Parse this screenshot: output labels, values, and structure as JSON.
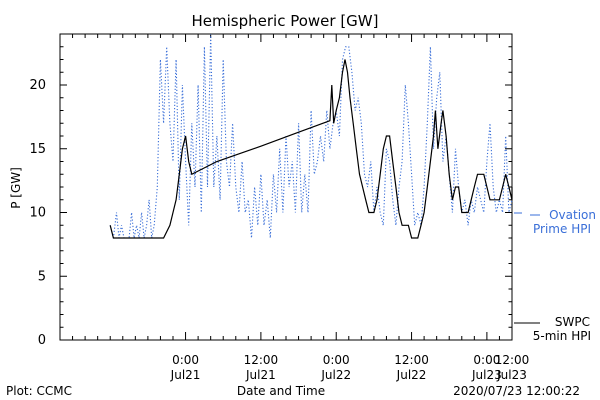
{
  "chart_data": {
    "type": "line",
    "title": "Hemispheric Power [GW]",
    "xlabel": "Date and Time",
    "ylabel": "P [GW]",
    "ylim": [
      0,
      24
    ],
    "xlim_hours": [
      -20,
      52
    ],
    "yticks": [
      0,
      5,
      10,
      15,
      20
    ],
    "grid": false,
    "legend_placement": "right",
    "x_ticks": [
      {
        "h": 0,
        "time": "0:00",
        "date": "Jul21"
      },
      {
        "h": 12,
        "time": "12:00",
        "date": "Jul21"
      },
      {
        "h": 24,
        "time": "0:00",
        "date": "Jul22"
      },
      {
        "h": 36,
        "time": "12:00",
        "date": "Jul22"
      },
      {
        "h": 48,
        "time": "0:00",
        "date": "Jul23"
      },
      {
        "h": 60,
        "time": "12:00",
        "date": "Jul23"
      }
    ],
    "series": [
      {
        "name": "SWPC 5-min HPI",
        "legend_lines": [
          "SWPC",
          "5-min HPI"
        ],
        "color": "#000000",
        "style": "solid",
        "points": [
          [
            -12,
            9
          ],
          [
            -11.5,
            8
          ],
          [
            -10.5,
            8
          ],
          [
            -9.5,
            8
          ],
          [
            -8.5,
            8
          ],
          [
            -7.5,
            8
          ],
          [
            -6.5,
            8
          ],
          [
            -5.5,
            8
          ],
          [
            -4.5,
            8
          ],
          [
            -3.5,
            8
          ],
          [
            -2.5,
            9
          ],
          [
            -2,
            10
          ],
          [
            -1.5,
            11
          ],
          [
            -1,
            13
          ],
          [
            -0.5,
            15
          ],
          [
            0,
            16
          ],
          [
            0.5,
            14
          ],
          [
            1,
            13
          ],
          [
            5,
            14
          ],
          [
            12,
            15.2
          ],
          [
            18,
            16.3
          ],
          [
            23,
            17.2
          ],
          [
            23.3,
            20
          ],
          [
            23.6,
            17
          ],
          [
            24,
            18
          ],
          [
            24.5,
            19
          ],
          [
            25,
            21
          ],
          [
            25.4,
            22
          ],
          [
            25.8,
            21
          ],
          [
            26.2,
            19
          ],
          [
            26.7,
            17
          ],
          [
            27.2,
            15
          ],
          [
            27.7,
            13
          ],
          [
            28.2,
            12
          ],
          [
            28.7,
            11
          ],
          [
            29.2,
            10
          ],
          [
            30,
            10
          ],
          [
            30.5,
            11
          ],
          [
            31,
            13
          ],
          [
            31.5,
            15
          ],
          [
            32,
            16
          ],
          [
            32.5,
            16
          ],
          [
            33,
            14
          ],
          [
            33.5,
            12
          ],
          [
            34,
            10
          ],
          [
            34.5,
            9
          ],
          [
            35.5,
            9
          ],
          [
            36,
            8
          ],
          [
            37,
            8
          ],
          [
            37.5,
            9
          ],
          [
            38,
            10
          ],
          [
            38.5,
            12
          ],
          [
            39,
            14
          ],
          [
            39.5,
            16
          ],
          [
            39.8,
            18
          ],
          [
            40.2,
            15
          ],
          [
            40.7,
            17
          ],
          [
            41,
            18
          ],
          [
            41.5,
            16
          ],
          [
            42,
            13
          ],
          [
            42.5,
            11
          ],
          [
            43,
            12
          ],
          [
            43.5,
            12
          ],
          [
            44,
            10
          ],
          [
            45,
            10
          ],
          [
            45.5,
            11
          ],
          [
            46,
            12
          ],
          [
            46.5,
            13
          ],
          [
            47,
            13
          ],
          [
            47.5,
            13
          ],
          [
            48,
            12
          ],
          [
            48.5,
            11
          ],
          [
            49,
            11
          ],
          [
            49.5,
            11
          ],
          [
            50,
            11
          ],
          [
            50.5,
            12
          ],
          [
            51,
            13
          ],
          [
            51.5,
            12
          ],
          [
            52,
            11
          ],
          [
            52,
            12
          ]
        ]
      },
      {
        "name": "Ovation Prime HPI",
        "legend_lines": [
          "Ovation",
          "Prime HPI"
        ],
        "color": "#3a6fd8",
        "style": "dotted",
        "points": [
          [
            -12,
            9
          ],
          [
            -11.5,
            8
          ],
          [
            -11,
            10
          ],
          [
            -10.6,
            8
          ],
          [
            -10.2,
            9
          ],
          [
            -9.8,
            8
          ],
          [
            -9.4,
            8
          ],
          [
            -9,
            8
          ],
          [
            -8.6,
            10
          ],
          [
            -8.2,
            8
          ],
          [
            -7.8,
            9
          ],
          [
            -7.4,
            8
          ],
          [
            -7,
            10
          ],
          [
            -6.6,
            8
          ],
          [
            -6.2,
            9
          ],
          [
            -5.8,
            11
          ],
          [
            -5.4,
            8
          ],
          [
            -5,
            9
          ],
          [
            -4.5,
            12
          ],
          [
            -4,
            22
          ],
          [
            -3.5,
            17
          ],
          [
            -3,
            23
          ],
          [
            -2.5,
            17
          ],
          [
            -2,
            14
          ],
          [
            -1.5,
            22
          ],
          [
            -1,
            11
          ],
          [
            -0.5,
            20
          ],
          [
            0,
            14
          ],
          [
            0.5,
            9
          ],
          [
            1,
            17
          ],
          [
            1.5,
            12
          ],
          [
            2,
            20
          ],
          [
            2.5,
            10
          ],
          [
            3,
            23
          ],
          [
            3.5,
            12
          ],
          [
            4,
            24
          ],
          [
            4.5,
            12
          ],
          [
            5,
            16
          ],
          [
            5.5,
            11
          ],
          [
            6,
            22
          ],
          [
            6.5,
            14
          ],
          [
            7,
            12
          ],
          [
            7.5,
            17
          ],
          [
            8,
            12
          ],
          [
            8.5,
            10
          ],
          [
            9,
            14
          ],
          [
            9.5,
            10
          ],
          [
            10,
            11
          ],
          [
            10.5,
            8
          ],
          [
            11,
            12
          ],
          [
            11.5,
            9
          ],
          [
            12,
            13
          ],
          [
            12.5,
            9
          ],
          [
            13,
            11
          ],
          [
            13.5,
            8
          ],
          [
            14,
            13
          ],
          [
            14.5,
            10
          ],
          [
            15,
            15
          ],
          [
            15.5,
            10
          ],
          [
            16,
            16
          ],
          [
            16.5,
            12
          ],
          [
            17,
            14
          ],
          [
            17.5,
            10
          ],
          [
            18,
            17
          ],
          [
            18.5,
            10
          ],
          [
            19,
            13
          ],
          [
            19.5,
            10
          ],
          [
            20,
            18
          ],
          [
            20.5,
            13
          ],
          [
            21,
            14
          ],
          [
            21.5,
            16
          ],
          [
            22,
            14
          ],
          [
            22.5,
            18
          ],
          [
            23,
            15
          ],
          [
            23.5,
            17
          ],
          [
            24,
            18
          ],
          [
            24.5,
            16
          ],
          [
            25,
            22
          ],
          [
            25.5,
            23
          ],
          [
            26,
            23
          ],
          [
            26.5,
            21
          ],
          [
            27,
            18
          ],
          [
            27.5,
            19
          ],
          [
            28,
            17
          ],
          [
            28.5,
            13
          ],
          [
            29,
            12
          ],
          [
            29.5,
            14
          ],
          [
            30,
            10
          ],
          [
            30.5,
            12
          ],
          [
            31,
            10
          ],
          [
            31.5,
            9
          ],
          [
            32,
            15
          ],
          [
            32.5,
            14
          ],
          [
            33,
            11
          ],
          [
            33.5,
            9
          ],
          [
            34,
            12
          ],
          [
            34.5,
            14
          ],
          [
            35,
            20
          ],
          [
            35.5,
            17
          ],
          [
            36,
            13
          ],
          [
            36.5,
            9
          ],
          [
            37,
            10
          ],
          [
            37.5,
            9
          ],
          [
            38,
            12
          ],
          [
            38.5,
            17
          ],
          [
            39,
            23
          ],
          [
            39.5,
            15
          ],
          [
            40,
            19
          ],
          [
            40.5,
            21
          ],
          [
            41,
            14
          ],
          [
            41.5,
            16
          ],
          [
            42,
            13
          ],
          [
            42.5,
            10
          ],
          [
            43,
            15
          ],
          [
            43.5,
            12
          ],
          [
            44,
            10
          ],
          [
            44.5,
            11
          ],
          [
            45,
            9
          ],
          [
            45.5,
            11
          ],
          [
            46,
            10
          ],
          [
            46.5,
            12
          ],
          [
            47,
            11
          ],
          [
            47.5,
            10
          ],
          [
            48,
            14
          ],
          [
            48.5,
            17
          ],
          [
            49,
            12
          ],
          [
            49.5,
            10
          ],
          [
            50,
            11
          ],
          [
            50.5,
            10
          ],
          [
            51,
            16
          ],
          [
            51.5,
            10
          ],
          [
            52,
            11
          ]
        ]
      }
    ]
  },
  "footer": {
    "left": "Plot: CCMC",
    "right": "2020/07/23 12:00:22"
  }
}
